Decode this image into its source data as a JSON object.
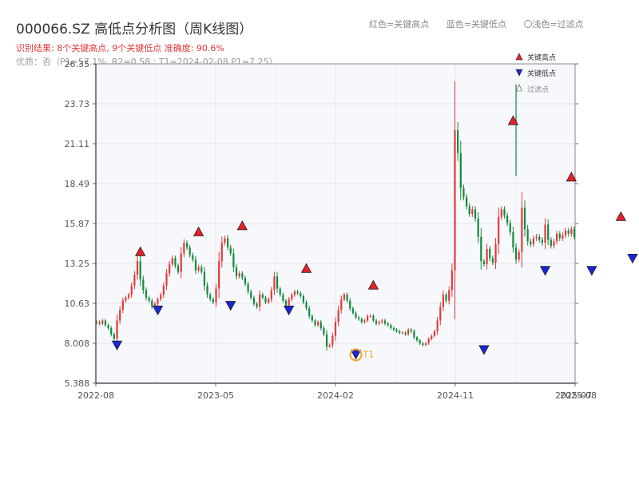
{
  "title": "000066.SZ 高低点分析图（周K线图）",
  "subtitle1": "识别结果: 8个关键高点, 9个关键低点  准确度: 90.6%",
  "subtitle2": "优质：否（P1=57.1%, R2=0.58 ; T1=2024-02-08 P1=7.25）",
  "top_legend": {
    "red": "红色=关键高点",
    "blue": "蓝色=关键低点",
    "hollow": "〇浅色=过滤点"
  },
  "colors": {
    "up": "#e4393c",
    "down": "#138a3c",
    "high_marker": "#e8202a",
    "low_marker": "#1a25d6",
    "t1": "#f5a02a"
  },
  "chart_data": {
    "type": "candlestick",
    "y_ticks": [
      "5.388",
      "8.008",
      "10.63",
      "13.25",
      "15.87",
      "18.49",
      "21.11",
      "23.73",
      "26.35"
    ],
    "ylim": [
      5.388,
      26.35
    ],
    "x_ticks": [
      "2022-08",
      "2023-05",
      "2024-02",
      "2024-11",
      "2025-07",
      "2025-08"
    ],
    "legend": [
      "关键高点",
      "关键低点",
      "过滤点"
    ],
    "series_close": [
      9.4,
      9.3,
      9.5,
      9.2,
      9.0,
      8.6,
      8.3,
      9.5,
      10.2,
      10.8,
      11.0,
      11.2,
      11.8,
      12.5,
      13.4,
      12.2,
      11.5,
      11.0,
      10.8,
      10.4,
      10.6,
      10.9,
      11.2,
      11.8,
      12.6,
      13.2,
      13.6,
      13.1,
      12.7,
      13.9,
      14.6,
      14.3,
      13.8,
      13.5,
      12.8,
      13.0,
      12.7,
      11.8,
      11.2,
      10.9,
      10.7,
      11.6,
      13.4,
      14.6,
      14.9,
      14.3,
      13.9,
      13.0,
      12.4,
      12.6,
      12.3,
      11.9,
      11.4,
      11.0,
      10.6,
      10.4,
      11.2,
      11.0,
      10.7,
      10.9,
      11.5,
      12.4,
      11.6,
      11.2,
      10.8,
      10.5,
      10.9,
      11.2,
      11.4,
      11.3,
      11.1,
      10.7,
      10.3,
      9.8,
      9.5,
      9.2,
      9.4,
      9.0,
      8.6,
      7.8,
      7.9,
      8.5,
      9.4,
      10.2,
      10.9,
      11.2,
      10.8,
      10.3,
      10.0,
      9.7,
      9.6,
      9.4,
      9.5,
      9.8,
      9.8,
      9.5,
      9.3,
      9.4,
      9.5,
      9.3,
      9.2,
      9.0,
      8.9,
      8.8,
      8.7,
      8.7,
      8.6,
      8.9,
      8.8,
      8.4,
      8.2,
      8.0,
      7.9,
      8.0,
      8.3,
      8.5,
      8.8,
      9.5,
      10.4,
      11.2,
      10.8,
      11.5,
      12.8,
      22.0,
      20.5,
      18.2,
      17.6,
      17.0,
      16.5,
      16.8,
      16.2,
      15.0,
      13.4,
      13.2,
      14.2,
      13.6,
      13.3,
      14.5,
      16.3,
      16.8,
      16.4,
      15.9,
      15.3,
      14.3,
      13.5,
      14.0,
      16.9,
      15.5,
      14.7,
      14.5,
      14.9,
      15.0,
      14.8,
      14.6,
      15.8,
      14.8,
      14.4,
      14.7,
      15.2,
      14.9,
      15.1,
      15.4,
      15.2,
      15.5,
      15.0
    ],
    "highs": [
      {
        "i": 15,
        "v": 13.6
      },
      {
        "i": 35,
        "v": 14.9
      },
      {
        "i": 50,
        "v": 15.3
      },
      {
        "i": 72,
        "v": 12.5
      },
      {
        "i": 95,
        "v": 11.4
      },
      {
        "i": 143,
        "v": 22.2
      },
      {
        "i": 163,
        "v": 18.5
      },
      {
        "i": 180,
        "v": 15.9
      }
    ],
    "lows": [
      {
        "i": 7,
        "v": 8.0
      },
      {
        "i": 21,
        "v": 10.3
      },
      {
        "i": 46,
        "v": 10.6
      },
      {
        "i": 66,
        "v": 10.3
      },
      {
        "i": 89,
        "v": 7.4
      },
      {
        "i": 133,
        "v": 7.7
      },
      {
        "i": 154,
        "v": 12.9
      },
      {
        "i": 170,
        "v": 12.9
      },
      {
        "i": 184,
        "v": 13.7
      }
    ],
    "t1": {
      "i": 89,
      "v": 7.25,
      "label": "T1"
    }
  }
}
